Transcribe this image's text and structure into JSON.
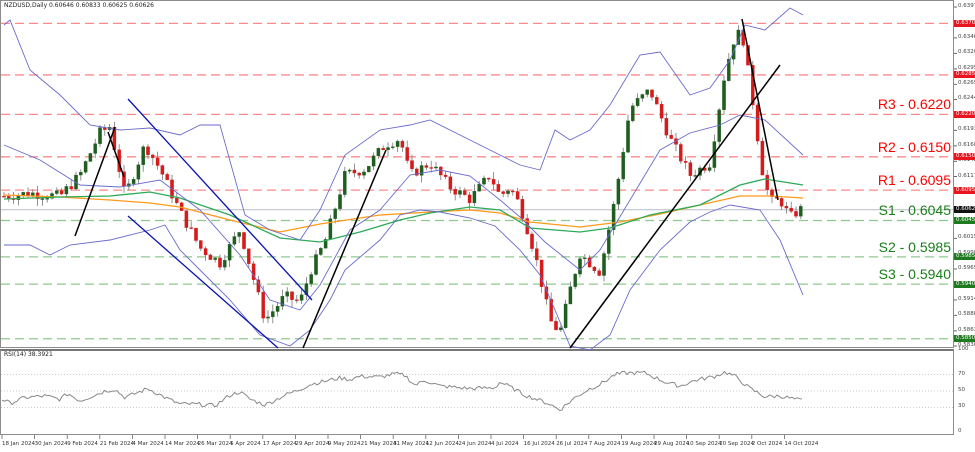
{
  "chart_data": {
    "type": "candlestick",
    "title": "NZDUSD,Daily  0.60646 0.60833 0.60625 0.60626",
    "symbol": "NZDUSD",
    "timeframe": "Daily",
    "ohlc_last": {
      "open": 0.60646,
      "high": 0.60833,
      "low": 0.60625,
      "close": 0.60626
    },
    "current_price": 0.60626,
    "ylim": [
      0.5838,
      0.6397
    ],
    "price_axis_ticks": [
      0.6397,
      0.6346,
      0.63205,
      0.6295,
      0.62695,
      0.62445,
      0.61935,
      0.6168,
      0.61425,
      0.61175,
      0.60915,
      0.60155,
      0.599,
      0.5965,
      0.5914,
      0.58885,
      0.5863,
      0.5838
    ],
    "horizontal_levels": [
      {
        "name": "upper-level",
        "value": 0.637,
        "label": "",
        "tag": "0.63700",
        "color": "#ff0000"
      },
      {
        "name": "upper-level-2",
        "value": 0.6285,
        "label": "",
        "tag": "0.62850",
        "color": "#ff0000"
      },
      {
        "name": "R3",
        "value": 0.622,
        "label": "R3 - 0.6220",
        "tag": "0.62200",
        "color": "#ff0000"
      },
      {
        "name": "R2",
        "value": 0.615,
        "label": "R2 - 0.6150",
        "tag": "0.61500",
        "color": "#ff0000"
      },
      {
        "name": "R1",
        "value": 0.6095,
        "label": "R1 - 0.6095",
        "tag": "0.60950",
        "color": "#ff0000"
      },
      {
        "name": "S1",
        "value": 0.6045,
        "label": "S1 - 0.6045",
        "tag": "0.60450",
        "color": "#1a7f1a"
      },
      {
        "name": "S2",
        "value": 0.5985,
        "label": "S2 - 0.5985",
        "tag": "0.59850",
        "color": "#1a7f1a"
      },
      {
        "name": "S3",
        "value": 0.594,
        "label": "S3 - 0.5940",
        "tag": "0.59400",
        "color": "#1a7f1a"
      },
      {
        "name": "lower-level",
        "value": 0.585,
        "label": "",
        "tag": "0.58500",
        "color": "#1a7f1a"
      }
    ],
    "current_price_tag": "0.60626",
    "x_tick_labels": [
      "18 Jan 2024",
      "30 Jan 2024",
      "9 Feb 2024",
      "21 Feb 2024",
      "4 Mar 2024",
      "14 Mar 2024",
      "26 Mar 2024",
      "5 Apr 2024",
      "17 Apr 2024",
      "29 Apr 2024",
      "9 May 2024",
      "21 May 2024",
      "31 May 2024",
      "12 Jun 2024",
      "24 Jun 2024",
      "4 Jul 2024",
      "16 Jul 2024",
      "26 Jul 2024",
      "7 Aug 2024",
      "19 Aug 2024",
      "29 Aug 2024",
      "10 Sep 2024",
      "20 Sep 2024",
      "2 Oct 2024",
      "14 Oct 2024"
    ],
    "indicators": [
      "Bollinger Bands (blue)",
      "Moving Average (orange)",
      "Moving Average (green)",
      "Trendlines (black)",
      "Descending channel (dark blue)"
    ],
    "rsi": {
      "title": "RSI(14) 38.3921",
      "value": 38.3921,
      "ylim": [
        0,
        100
      ],
      "levels": [
        70,
        50,
        30
      ],
      "ticks": [
        100,
        70,
        50,
        30,
        0
      ]
    }
  },
  "header": {
    "title": "NZDUSD,Daily  0.60646 0.60833 0.60625 0.60626"
  },
  "rsi_header": {
    "title": "RSI(14) 38.3921"
  },
  "axis": {
    "price_ticks": [
      "0.63970",
      "0.63460",
      "0.63205",
      "0.62950",
      "0.62695",
      "0.62445",
      "0.61935",
      "0.61680",
      "0.61425",
      "0.61175",
      "0.60915",
      "0.60155",
      "0.59900",
      "0.59650",
      "0.59140",
      "0.58885",
      "0.58630",
      "0.58380"
    ],
    "rsi_ticks": [
      "100",
      "70",
      "50",
      "30",
      "0"
    ]
  },
  "colors": {
    "bull": "#1e5e1e",
    "bear": "#d41c1c",
    "resistance": "#ff0000",
    "support": "#1a7f1a",
    "bollinger": "#6a6acc",
    "ma_orange": "#ff9a1a",
    "ma_green": "#2eaa5a",
    "channel": "#0a14b4"
  }
}
